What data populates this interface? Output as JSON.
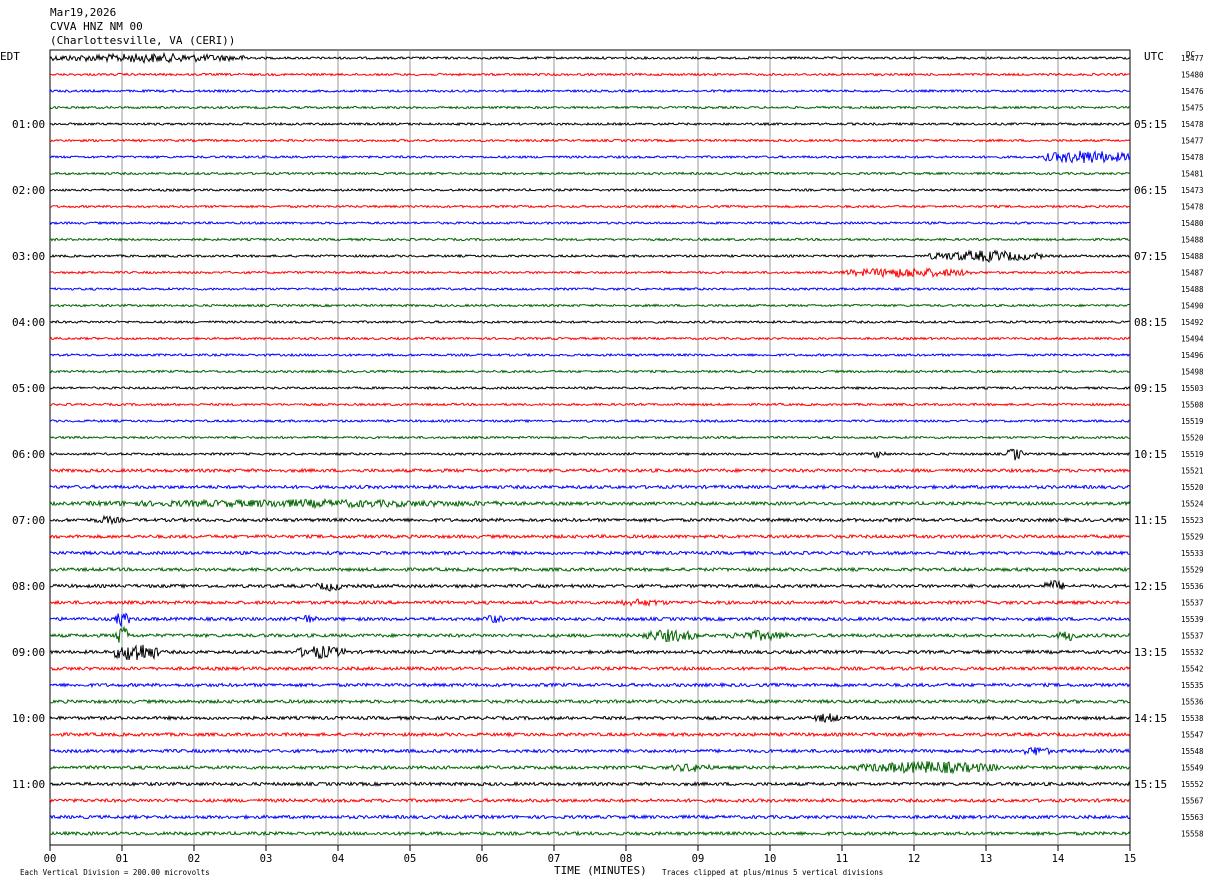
{
  "header": {
    "date": "Mar19,2026",
    "station": "CVVA HNZ NM 00",
    "location": "(Charlottesville, VA (CERI))"
  },
  "left_timezone": "EDT",
  "right_timezone": "UTC",
  "dc_label": "DC",
  "footer": {
    "scale_note": "Each Vertical Division =  200.00 microvolts",
    "clip_note": "Traces clipped at plus/minus 5 vertical divisions",
    "x_title": "TIME (MINUTES)"
  },
  "colors": {
    "cycle": [
      "#000000",
      "#ff0000",
      "#0000ff",
      "#006400"
    ],
    "grid": "#999999"
  },
  "chart_data": {
    "type": "line",
    "subtype": "helicorder",
    "x_title": "TIME (MINUTES)",
    "xlim": [
      0,
      15
    ],
    "x_ticks": [
      "00",
      "01",
      "02",
      "03",
      "04",
      "05",
      "06",
      "07",
      "08",
      "09",
      "10",
      "11",
      "12",
      "13",
      "14",
      "15"
    ],
    "minutes_per_trace": 15,
    "trace_count": 48,
    "left_hour_labels": [
      "01:00",
      "02:00",
      "03:00",
      "04:00",
      "05:00",
      "06:00",
      "07:00",
      "08:00",
      "09:00",
      "10:00",
      "11:00"
    ],
    "right_hour_labels": [
      "05:15",
      "06:15",
      "07:15",
      "08:15",
      "09:15",
      "10:15",
      "11:15",
      "12:15",
      "13:15",
      "14:15",
      "15:15"
    ],
    "dc_values": [
      15477,
      15480,
      15476,
      15475,
      15478,
      15477,
      15478,
      15481,
      15473,
      15478,
      15480,
      15488,
      15488,
      15487,
      15488,
      15490,
      15492,
      15494,
      15496,
      15498,
      15503,
      15508,
      15519,
      15520,
      15519,
      15521,
      15520,
      15524,
      15523,
      15529,
      15533,
      15529,
      15536,
      15537,
      15539,
      15537,
      15532,
      15542,
      15535,
      15536,
      15538,
      15547,
      15548,
      15549,
      15552,
      15567,
      15563,
      15558
    ],
    "events": [
      {
        "trace": 0,
        "start_min": 0.0,
        "end_min": 2.8,
        "amp": 2.0
      },
      {
        "trace": 6,
        "start_min": 13.8,
        "end_min": 15.0,
        "amp": 3.0
      },
      {
        "trace": 12,
        "start_min": 12.2,
        "end_min": 13.8,
        "amp": 2.5
      },
      {
        "trace": 13,
        "start_min": 11.0,
        "end_min": 12.8,
        "amp": 2.2
      },
      {
        "trace": 24,
        "start_min": 11.4,
        "end_min": 11.6,
        "amp": 1.8
      },
      {
        "trace": 24,
        "start_min": 13.3,
        "end_min": 13.5,
        "amp": 3.0
      },
      {
        "trace": 27,
        "start_min": 0.5,
        "end_min": 6.5,
        "amp": 1.8
      },
      {
        "trace": 28,
        "start_min": 0.6,
        "end_min": 1.0,
        "amp": 1.8
      },
      {
        "trace": 32,
        "start_min": 3.7,
        "end_min": 4.1,
        "amp": 2.2
      },
      {
        "trace": 32,
        "start_min": 13.8,
        "end_min": 14.1,
        "amp": 2.5
      },
      {
        "trace": 33,
        "start_min": 7.8,
        "end_min": 8.6,
        "amp": 1.6
      },
      {
        "trace": 34,
        "start_min": 0.9,
        "end_min": 1.1,
        "amp": 3.5
      },
      {
        "trace": 34,
        "start_min": 3.4,
        "end_min": 3.7,
        "amp": 2.0
      },
      {
        "trace": 34,
        "start_min": 6.0,
        "end_min": 6.3,
        "amp": 2.0
      },
      {
        "trace": 35,
        "start_min": 0.9,
        "end_min": 1.1,
        "amp": 4.5
      },
      {
        "trace": 35,
        "start_min": 8.2,
        "end_min": 9.0,
        "amp": 2.8
      },
      {
        "trace": 35,
        "start_min": 9.4,
        "end_min": 10.3,
        "amp": 2.2
      },
      {
        "trace": 35,
        "start_min": 14.0,
        "end_min": 14.3,
        "amp": 2.5
      },
      {
        "trace": 36,
        "start_min": 0.9,
        "end_min": 1.5,
        "amp": 4.5
      },
      {
        "trace": 36,
        "start_min": 3.4,
        "end_min": 4.1,
        "amp": 3.0
      },
      {
        "trace": 40,
        "start_min": 10.6,
        "end_min": 11.0,
        "amp": 2.2
      },
      {
        "trace": 42,
        "start_min": 13.5,
        "end_min": 13.9,
        "amp": 2.2
      },
      {
        "trace": 43,
        "start_min": 8.6,
        "end_min": 9.2,
        "amp": 2.0
      },
      {
        "trace": 43,
        "start_min": 11.2,
        "end_min": 13.2,
        "amp": 2.8
      }
    ]
  }
}
